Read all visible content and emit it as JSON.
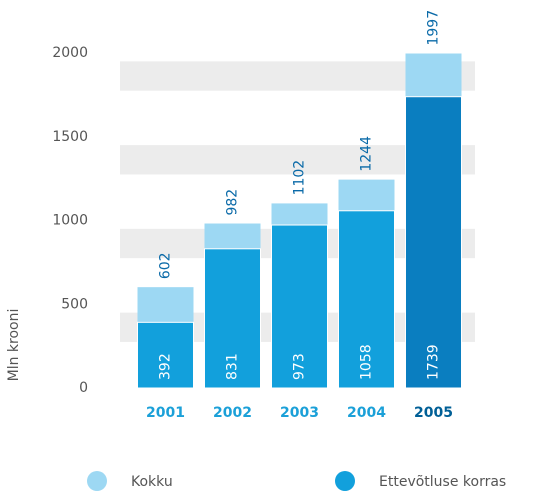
{
  "chart_data": {
    "type": "bar",
    "y_axis_label": "Mln krooni",
    "categories": [
      "2001",
      "2002",
      "2003",
      "2004",
      "2005"
    ],
    "category_colors": [
      "#1ba0d8",
      "#1ba0d8",
      "#1ba0d8",
      "#1ba0d8",
      "#005f96"
    ],
    "series": [
      {
        "name": "Kokku",
        "color": [
          "#9dd8f3",
          "#9dd8f3",
          "#9dd8f3",
          "#9dd8f3",
          "#9dd8f3"
        ],
        "values": [
          602,
          982,
          1102,
          1244,
          1997
        ]
      },
      {
        "name": "Ettevõtluse korras",
        "color": [
          "#12a0dc",
          "#12a0dc",
          "#12a0dc",
          "#12a0dc",
          "#0a7ec0"
        ],
        "values": [
          392,
          831,
          973,
          1058,
          1739
        ]
      }
    ],
    "ylim": [
      0,
      2000
    ],
    "yticks": [
      0,
      500,
      1000,
      1500,
      2000
    ],
    "grid": true
  }
}
